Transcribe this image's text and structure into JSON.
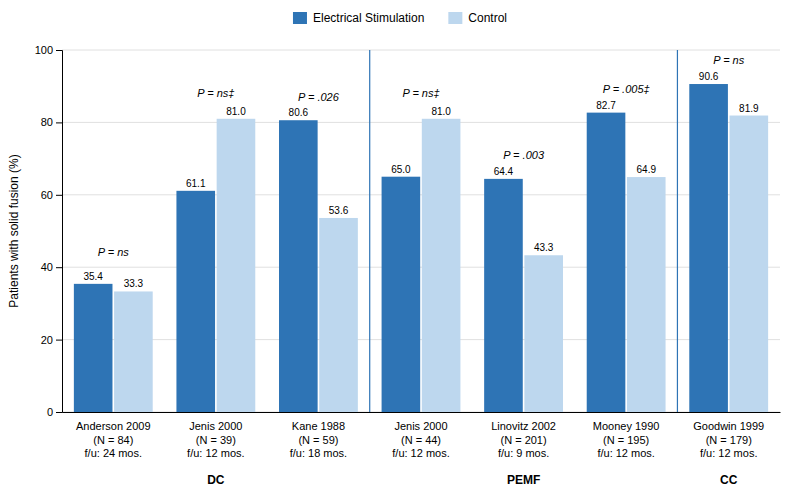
{
  "chart_data": {
    "type": "bar",
    "categories": [
      "Anderson 2009\n(N = 84)\nf/u: 24 mos.",
      "Jenis 2000\n(N = 39)\nf/u: 12 mos.",
      "Kane 1988\n(N = 59)\nf/u: 18 mos.",
      "Jenis 2000\n(N = 44)\nf/u: 12 mos.",
      "Linovitz 2002\n(N = 201)\nf/u: 9 mos.",
      "Mooney 1990\n(N = 195)\nf/u: 12 mos.",
      "Goodwin 1999\n(N = 179)\nf/u: 12 mos."
    ],
    "groups": [
      "DC",
      "DC",
      "DC",
      "PEMF",
      "PEMF",
      "PEMF",
      "CC"
    ],
    "series": [
      {
        "name": "Electrical Stimulation",
        "color": "#2E74B5",
        "values": [
          35.4,
          61.1,
          80.6,
          65.0,
          64.4,
          82.7,
          90.6
        ],
        "value_labels": [
          "35.4",
          "61.1",
          "80.6",
          "65.0",
          "64.4",
          "82.7",
          "90.6"
        ]
      },
      {
        "name": "Control",
        "color": "#BDD7EE",
        "values": [
          33.3,
          81.0,
          53.6,
          81.0,
          43.3,
          64.9,
          81.9
        ],
        "value_labels": [
          "33.3",
          "81.0",
          "53.6",
          "81.0",
          "43.3",
          "64.9",
          "81.9"
        ]
      }
    ],
    "annotations": [
      {
        "text": "P = ns",
        "x": "Anderson 2009\n(N = 84)\nf/u: 24 mos.",
        "y": 43
      },
      {
        "text": "P = ns‡",
        "x": "Jenis 2000\n(N = 39)\nf/u: 12 mos.",
        "y": 87
      },
      {
        "text": "P = .026",
        "x": "Kane 1988\n(N = 59)\nf/u: 18 mos.",
        "y": 86
      },
      {
        "text": "P = ns‡",
        "x": "Jenis 2000\n(N = 44)\nf/u: 12 mos.",
        "y": 87
      },
      {
        "text": "P = .003",
        "x": "Linovitz 2002\n(N = 201)\nf/u: 9 mos.",
        "y": 70
      },
      {
        "text": "P = .005‡",
        "x": "Mooney 1990\n(N = 195)\nf/u: 12 mos.",
        "y": 88
      },
      {
        "text": "P = ns",
        "x": "Goodwin 1999\n(N = 179)\nf/u: 12 mos.",
        "y": 96
      }
    ],
    "ylabel": "Patients with solid fusion (%)",
    "ylim": [
      0,
      100
    ],
    "yticks": [
      0,
      20,
      40,
      60,
      80,
      100
    ],
    "grid": true,
    "legend": "top",
    "data_labels": true
  }
}
